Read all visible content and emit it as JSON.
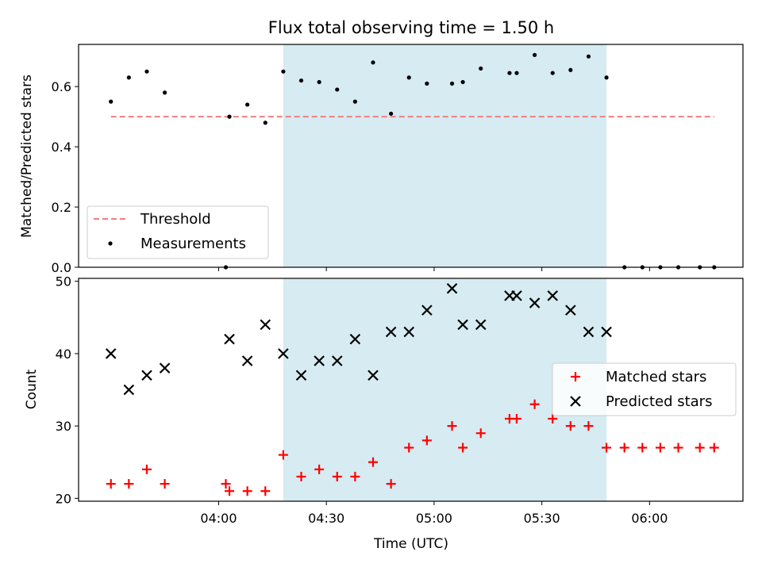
{
  "chart_data": [
    {
      "type": "scatter",
      "title": "Flux total observing time = 1.50 h",
      "ylabel": "Matched/Predicted stars",
      "ylim": [
        0,
        0.74
      ],
      "yticks": [
        "0.0",
        "0.2",
        "0.4",
        "0.6"
      ],
      "ytick_values": [
        0,
        0.2,
        0.4,
        0.6
      ],
      "x_range": [
        "03:21",
        "06:26"
      ],
      "shaded_span": [
        "04:18",
        "05:48"
      ],
      "shade_color": "#add8e6",
      "legend_position": "lower-left",
      "series": [
        {
          "name": "Threshold",
          "style": "dashed-line",
          "color": "#f08080",
          "x": [
            "03:30",
            "06:18"
          ],
          "y": [
            0.5,
            0.5
          ]
        },
        {
          "name": "Measurements",
          "style": "dot",
          "color": "#000000",
          "x": [
            "03:30",
            "03:35",
            "03:40",
            "03:45",
            "04:02",
            "04:03",
            "04:08",
            "04:13",
            "04:18",
            "04:23",
            "04:28",
            "04:33",
            "04:38",
            "04:43",
            "04:48",
            "04:53",
            "04:58",
            "05:05",
            "05:08",
            "05:13",
            "05:21",
            "05:23",
            "05:28",
            "05:33",
            "05:38",
            "05:43",
            "05:48",
            "05:53",
            "05:58",
            "06:03",
            "06:08",
            "06:14",
            "06:18"
          ],
          "y": [
            0.55,
            0.63,
            0.65,
            0.58,
            0.0,
            0.5,
            0.54,
            0.48,
            0.65,
            0.62,
            0.615,
            0.59,
            0.55,
            0.68,
            0.51,
            0.63,
            0.61,
            0.61,
            0.615,
            0.66,
            0.645,
            0.645,
            0.705,
            0.645,
            0.655,
            0.7,
            0.63,
            0.0,
            0.0,
            0.0,
            0.0,
            0.0,
            0.0
          ]
        }
      ]
    },
    {
      "type": "scatter",
      "xlabel": "Time (UTC)",
      "ylabel": "Count",
      "ylim": [
        19.6,
        50.4
      ],
      "yticks": [
        "20",
        "30",
        "40",
        "50"
      ],
      "ytick_values": [
        20,
        30,
        40,
        50
      ],
      "xticks": [
        "04:00",
        "04:30",
        "05:00",
        "05:30",
        "06:00"
      ],
      "x_range": [
        "03:21",
        "06:26"
      ],
      "shaded_span": [
        "04:18",
        "05:48"
      ],
      "shade_color": "#add8e6",
      "legend_position": "center-right",
      "series": [
        {
          "name": "Matched stars",
          "marker": "plus",
          "color": "#ff0000",
          "x": [
            "03:30",
            "03:35",
            "03:40",
            "03:45",
            "04:02",
            "04:03",
            "04:08",
            "04:13",
            "04:18",
            "04:23",
            "04:28",
            "04:33",
            "04:38",
            "04:43",
            "04:48",
            "04:53",
            "04:58",
            "05:05",
            "05:08",
            "05:13",
            "05:21",
            "05:23",
            "05:28",
            "05:33",
            "05:38",
            "05:43",
            "05:48",
            "05:53",
            "05:58",
            "06:03",
            "06:08",
            "06:14",
            "06:18"
          ],
          "y": [
            22,
            22,
            24,
            22,
            22,
            21,
            21,
            21,
            26,
            23,
            24,
            23,
            23,
            25,
            22,
            27,
            28,
            30,
            27,
            29,
            31,
            31,
            33,
            31,
            30,
            30,
            27,
            27,
            27,
            27,
            27,
            27,
            27
          ]
        },
        {
          "name": "Predicted stars",
          "marker": "x",
          "color": "#000000",
          "x": [
            "03:30",
            "03:35",
            "03:40",
            "03:45",
            "04:03",
            "04:08",
            "04:13",
            "04:18",
            "04:23",
            "04:28",
            "04:33",
            "04:38",
            "04:43",
            "04:48",
            "04:53",
            "04:58",
            "05:05",
            "05:08",
            "05:13",
            "05:21",
            "05:23",
            "05:28",
            "05:33",
            "05:38",
            "05:43",
            "05:48"
          ],
          "y": [
            40,
            35,
            37,
            38,
            42,
            39,
            44,
            40,
            37,
            39,
            39,
            42,
            37,
            43,
            43,
            46,
            49,
            44,
            44,
            48,
            48,
            47,
            48,
            46,
            43,
            43
          ]
        }
      ]
    }
  ]
}
